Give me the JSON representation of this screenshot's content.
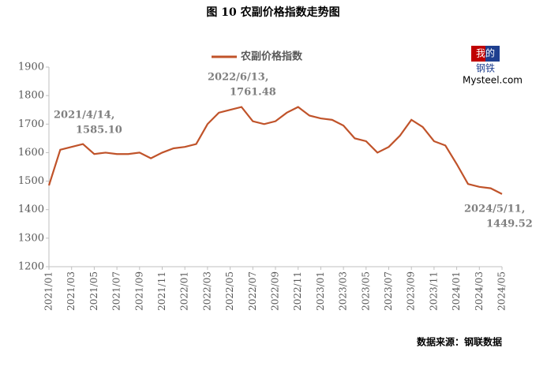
{
  "chart_data": {
    "type": "line",
    "title": "图 10 农副价格指数走势图",
    "categories": [
      "2021/01",
      null,
      "2021/03",
      null,
      "2021/05",
      null,
      "2021/07",
      null,
      "2021/09",
      null,
      "2021/11",
      null,
      "2022/01",
      null,
      "2022/03",
      null,
      "2022/05",
      null,
      "2022/07",
      null,
      "2022/09",
      null,
      "2022/11",
      null,
      "2023/01",
      null,
      "2023/03",
      null,
      "2023/05",
      null,
      "2023/07",
      null,
      "2023/09",
      null,
      "2023/11",
      null,
      "2024/01",
      null,
      "2024/03",
      null,
      "2024/05"
    ],
    "series": [
      {
        "name": "农副价格指数",
        "color": "#c0532a",
        "values": [
          1485,
          1610,
          1620,
          1630,
          1595,
          1600,
          1595,
          1595,
          1600,
          1580,
          1600,
          1615,
          1620,
          1630,
          1700,
          1740,
          1750,
          1760,
          1710,
          1700,
          1710,
          1740,
          1760,
          1730,
          1720,
          1715,
          1695,
          1650,
          1640,
          1600,
          1620,
          1660,
          1715,
          1690,
          1640,
          1625,
          1560,
          1490,
          1480,
          1475,
          1455
        ]
      }
    ],
    "ylim": [
      1200,
      1900
    ],
    "yticks": [
      1200,
      1300,
      1400,
      1500,
      1600,
      1700,
      1800,
      1900
    ],
    "annotations": [
      [
        "2021/4/14,",
        "1585.10"
      ],
      [
        "2022/6/13,",
        "1761.48"
      ],
      [
        "2024/5/11,",
        "1449.52"
      ]
    ],
    "source": "数据来源：钢联数据",
    "logo": [
      "我的",
      "钢铁",
      "Mysteel.com"
    ]
  }
}
